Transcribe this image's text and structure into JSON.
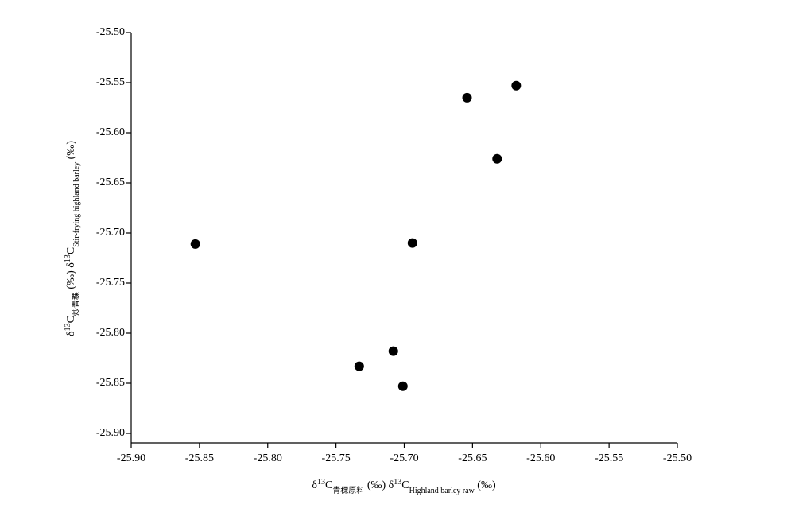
{
  "chart_data": {
    "type": "scatter",
    "xlabel": [
      "δ",
      "13",
      "C",
      "青稞原料",
      " (‰) δ",
      "13",
      "C",
      "Highland barley raw",
      " (‰)"
    ],
    "ylabel": [
      "δ",
      "13",
      "C",
      "炒青稞",
      " (‰) δ",
      "13",
      "C",
      "Stir-frying highland barley",
      " (‰)"
    ],
    "x": [
      -25.853,
      -25.733,
      -25.708,
      -25.701,
      -25.694,
      -25.654,
      -25.632,
      -25.618
    ],
    "y": [
      -25.711,
      -25.833,
      -25.818,
      -25.853,
      -25.71,
      -25.565,
      -25.626,
      -25.553
    ],
    "color": "#000000",
    "xlim": [
      -25.9,
      -25.5
    ],
    "ylim": [
      -25.9,
      -25.5
    ],
    "xticks": [
      {
        "value": -25.9,
        "label": "-25.90"
      },
      {
        "value": -25.85,
        "label": "-25.85"
      },
      {
        "value": -25.8,
        "label": "-25.80"
      },
      {
        "value": -25.75,
        "label": "-25.75"
      },
      {
        "value": -25.7,
        "label": "-25.70"
      },
      {
        "value": -25.65,
        "label": "-25.65"
      },
      {
        "value": -25.6,
        "label": "-25.60"
      },
      {
        "value": -25.55,
        "label": "-25.55"
      },
      {
        "value": -25.5,
        "label": "-25.50"
      }
    ],
    "yticks": [
      {
        "value": -25.9,
        "label": "-25.90"
      },
      {
        "value": -25.85,
        "label": "-25.85"
      },
      {
        "value": -25.8,
        "label": "-25.80"
      },
      {
        "value": -25.75,
        "label": "-25.75"
      },
      {
        "value": -25.7,
        "label": "-25.70"
      },
      {
        "value": -25.65,
        "label": "-25.65"
      },
      {
        "value": -25.6,
        "label": "-25.60"
      },
      {
        "value": -25.55,
        "label": "-25.55"
      },
      {
        "value": -25.5,
        "label": "-25.50"
      }
    ]
  }
}
